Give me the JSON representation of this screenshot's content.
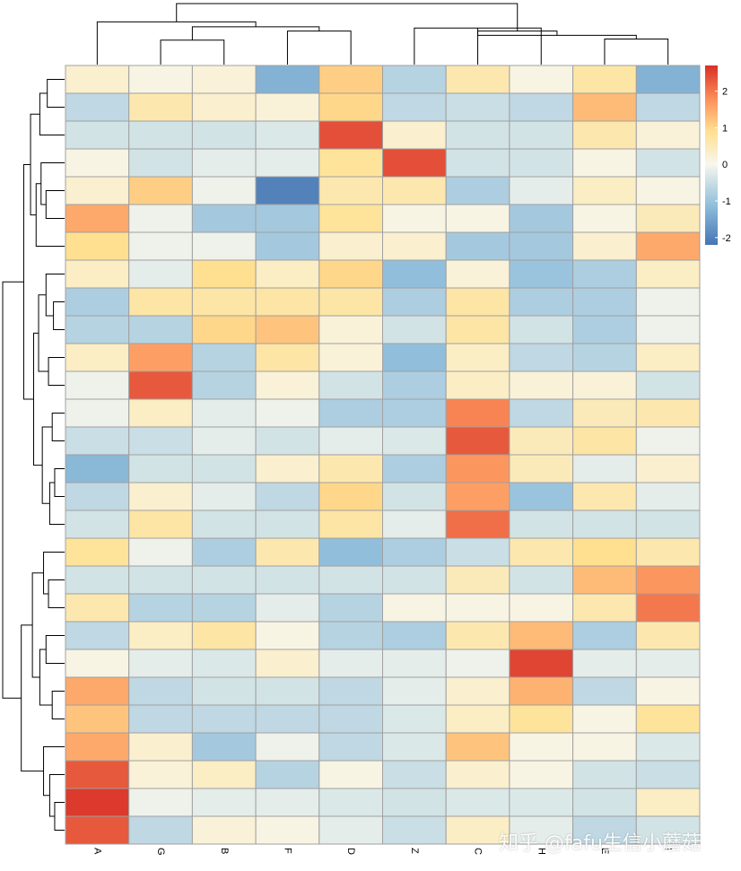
{
  "chart_data": {
    "type": "heatmap",
    "title": "",
    "columns": [
      "A",
      "G",
      "B",
      "F",
      "D",
      "Z",
      "C",
      "H",
      "E",
      "I"
    ],
    "rows": 28,
    "values": [
      [
        0.3,
        0.1,
        0.2,
        -1.3,
        1.1,
        -0.7,
        0.6,
        0.1,
        0.7,
        -1.3
      ],
      [
        -0.6,
        0.6,
        0.3,
        0.2,
        1.0,
        -0.6,
        -0.5,
        -0.6,
        1.3,
        -0.6
      ],
      [
        -0.4,
        -0.4,
        -0.4,
        -0.3,
        2.4,
        0.3,
        -0.4,
        -0.4,
        0.6,
        0.2
      ],
      [
        0.1,
        -0.4,
        -0.2,
        -0.2,
        0.8,
        2.4,
        -0.4,
        -0.4,
        0.1,
        -0.4
      ],
      [
        0.3,
        1.1,
        -0.1,
        -2.0,
        0.6,
        0.6,
        -0.8,
        -0.2,
        0.4,
        0.1
      ],
      [
        1.5,
        -0.1,
        -0.9,
        -0.9,
        0.8,
        0.1,
        0.1,
        -0.9,
        0.1,
        0.5
      ],
      [
        0.9,
        -0.1,
        -0.1,
        -0.9,
        0.3,
        0.3,
        -0.9,
        -0.9,
        0.3,
        1.5
      ],
      [
        0.4,
        -0.2,
        0.9,
        0.4,
        1.0,
        -1.1,
        0.2,
        -1.0,
        -0.8,
        0.4
      ],
      [
        -0.8,
        0.7,
        0.7,
        0.7,
        0.7,
        -0.8,
        0.7,
        -0.8,
        -0.8,
        -0.1
      ],
      [
        -0.7,
        -0.7,
        1.0,
        1.2,
        0.2,
        -0.4,
        0.7,
        -0.4,
        -0.8,
        -0.1
      ],
      [
        0.4,
        1.6,
        -0.7,
        0.7,
        0.2,
        -1.1,
        0.4,
        -0.6,
        -0.7,
        0.4
      ],
      [
        -0.1,
        2.3,
        -0.7,
        0.2,
        -0.4,
        -0.8,
        0.4,
        0.2,
        0.2,
        -0.4
      ],
      [
        -0.1,
        0.4,
        -0.2,
        -0.1,
        -0.8,
        -0.8,
        1.9,
        -0.6,
        0.5,
        0.6
      ],
      [
        -0.5,
        -0.5,
        -0.2,
        -0.4,
        -0.2,
        -0.3,
        2.3,
        0.5,
        0.7,
        -0.1
      ],
      [
        -1.2,
        -0.4,
        -0.4,
        0.3,
        0.6,
        -0.8,
        1.7,
        0.5,
        -0.2,
        0.3
      ],
      [
        -0.6,
        0.3,
        -0.2,
        -0.6,
        1.0,
        -0.4,
        1.6,
        -1.0,
        0.6,
        -0.2
      ],
      [
        -0.4,
        0.7,
        -0.4,
        -0.4,
        0.7,
        -0.2,
        2.1,
        -0.4,
        -0.4,
        -0.4
      ],
      [
        0.8,
        -0.1,
        -0.8,
        0.6,
        -1.1,
        -0.8,
        -0.5,
        0.6,
        0.9,
        0.6
      ],
      [
        -0.4,
        -0.4,
        -0.4,
        -0.4,
        -0.4,
        -0.4,
        0.5,
        -0.4,
        1.3,
        1.7
      ],
      [
        0.6,
        -0.7,
        -0.7,
        -0.2,
        -0.7,
        0.1,
        0.1,
        0.1,
        0.6,
        2.0
      ],
      [
        -0.6,
        0.4,
        0.7,
        0.1,
        -0.7,
        -0.8,
        0.6,
        1.3,
        -0.8,
        0.6
      ],
      [
        0.1,
        -0.2,
        -0.3,
        0.3,
        -0.2,
        -0.2,
        -0.1,
        2.5,
        -0.2,
        -0.2
      ],
      [
        1.5,
        -0.6,
        -0.4,
        -0.4,
        -0.6,
        -0.2,
        0.3,
        1.4,
        -0.6,
        0.1
      ],
      [
        1.2,
        -0.6,
        -0.6,
        -0.6,
        -0.6,
        -0.3,
        0.4,
        0.8,
        0.1,
        0.8
      ],
      [
        1.5,
        0.3,
        -0.9,
        -0.1,
        -0.6,
        -0.3,
        1.2,
        0.1,
        0.1,
        -0.3
      ],
      [
        2.3,
        0.2,
        0.4,
        -0.7,
        0.1,
        -0.5,
        0.3,
        0.1,
        -0.4,
        -0.5
      ],
      [
        2.6,
        -0.1,
        -0.2,
        -0.2,
        -0.3,
        -0.4,
        -0.3,
        -0.3,
        -0.4,
        0.4
      ],
      [
        2.3,
        -0.6,
        0.2,
        0.1,
        -0.2,
        -0.5,
        0.4,
        -0.2,
        -0.6,
        -0.4
      ]
    ],
    "color_scale": {
      "min": -2.2,
      "max": 2.7,
      "stops": [
        {
          "value": -2.2,
          "color": "#4575b4"
        },
        {
          "value": -1.1,
          "color": "#91bfdb"
        },
        {
          "value": 0.0,
          "color": "#f7f7ed"
        },
        {
          "value": 0.9,
          "color": "#ffe090"
        },
        {
          "value": 1.8,
          "color": "#fc8d59"
        },
        {
          "value": 2.7,
          "color": "#d73027"
        }
      ]
    },
    "legend_ticks": [
      2,
      1,
      0,
      -1,
      -2
    ],
    "legend_position": "right",
    "row_dendrogram": true,
    "column_dendrogram": true,
    "grid_color": "#a0a0a0"
  },
  "watermark": "知乎 @fafu生信小蘑菇"
}
